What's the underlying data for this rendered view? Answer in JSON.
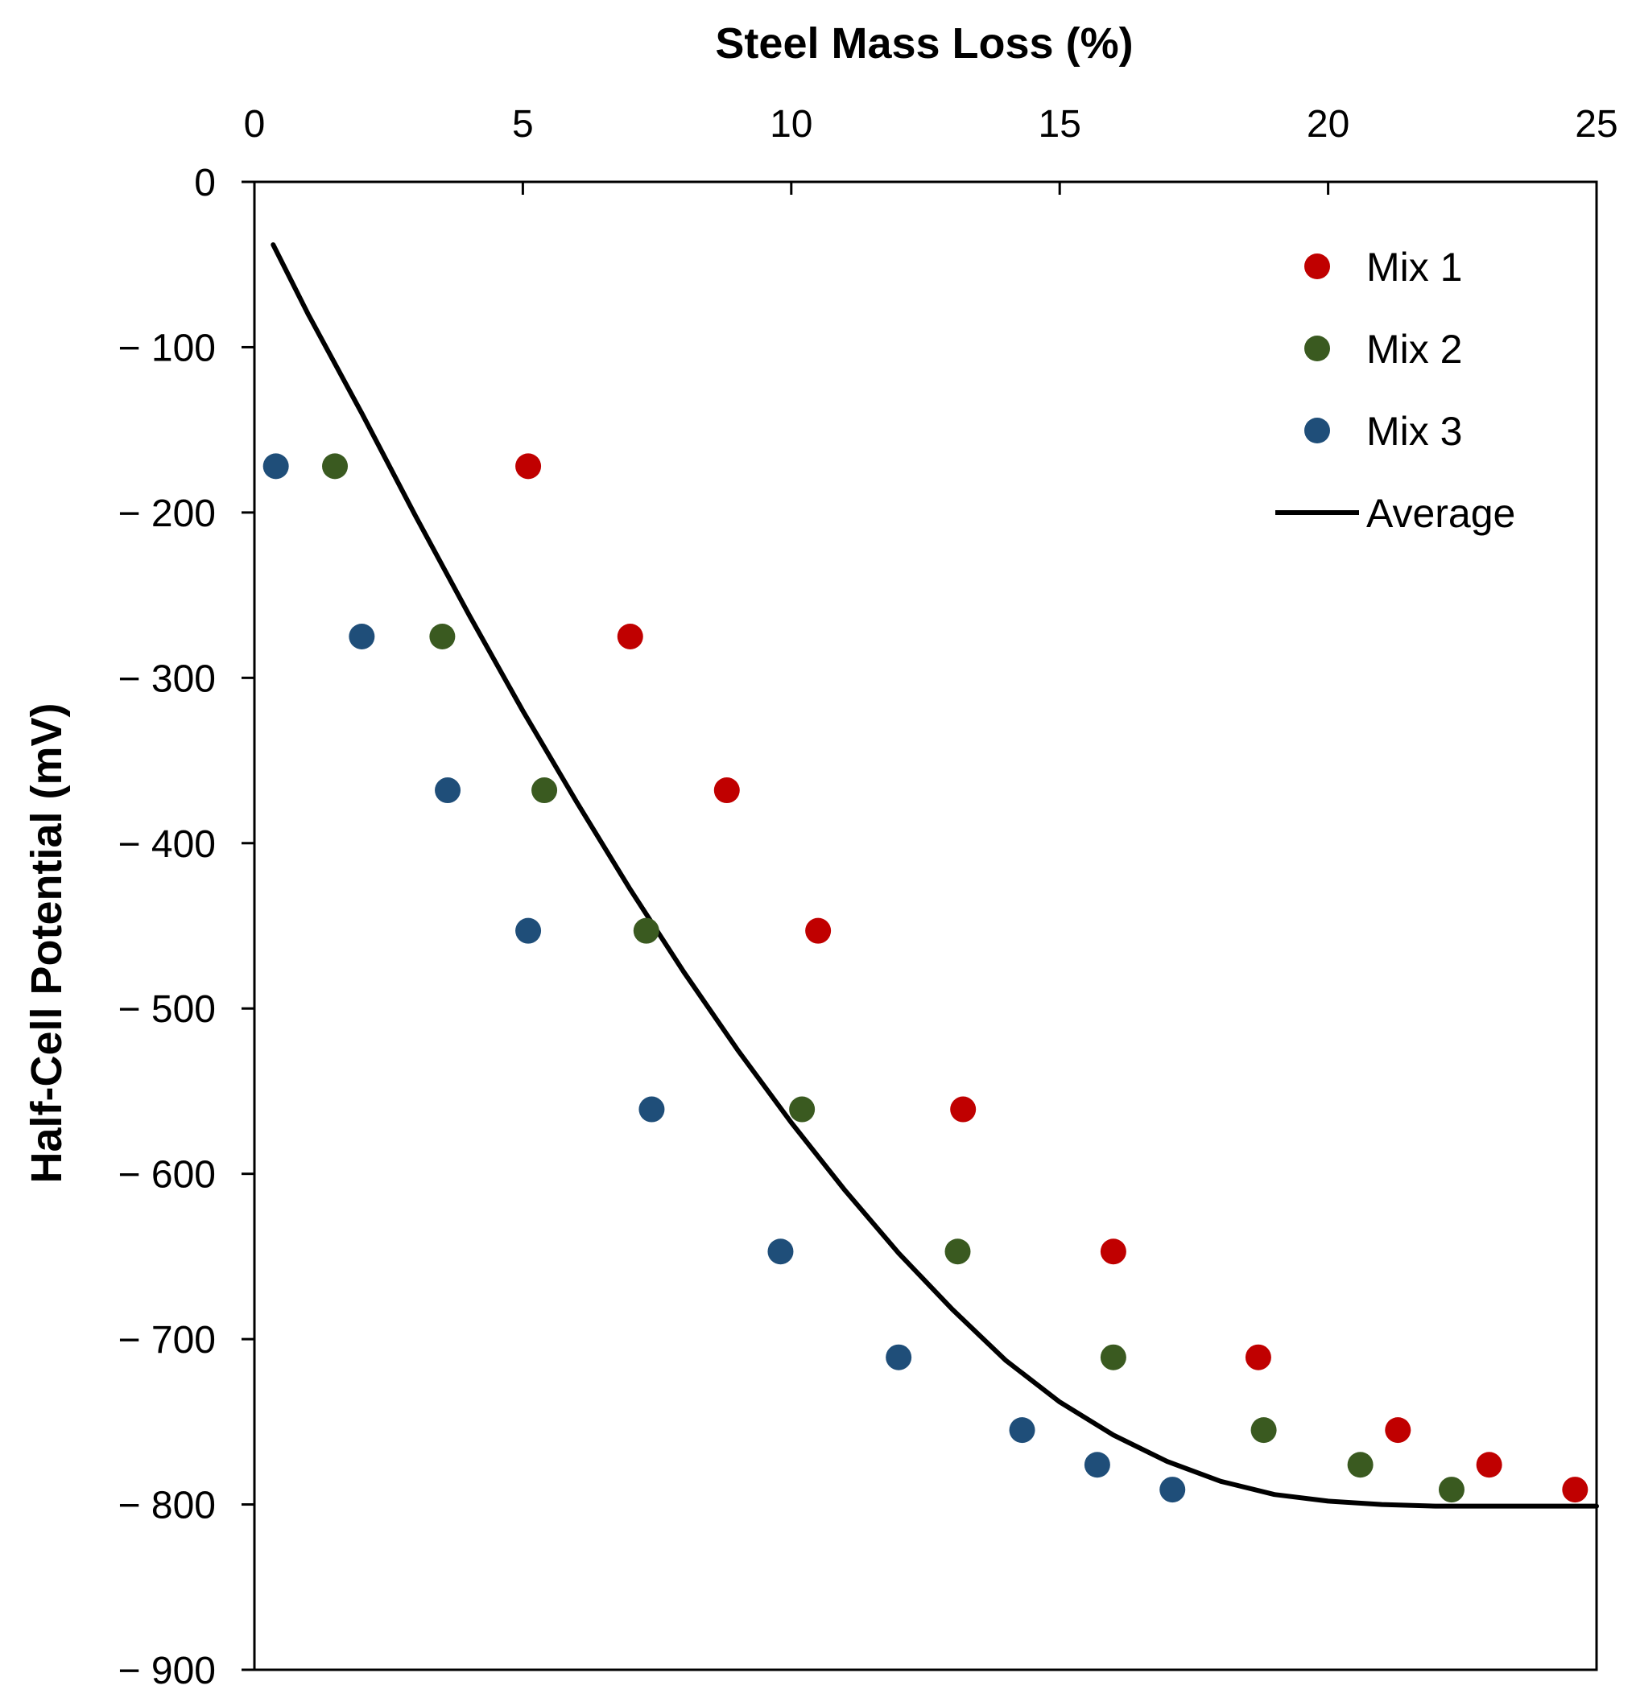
{
  "chart_data": {
    "type": "scatter",
    "title": "",
    "xlabel": "Steel Mass Loss (%)",
    "ylabel": "Half-Cell Potential (mV)",
    "xlim": [
      0,
      25
    ],
    "ylim": [
      -900,
      0
    ],
    "x_axis_position": "top",
    "x_ticks": [
      0,
      5,
      10,
      15,
      20,
      25
    ],
    "x_tick_labels": [
      "0",
      "5",
      "10",
      "15",
      "20",
      "25"
    ],
    "y_ticks": [
      0,
      -100,
      -200,
      -300,
      -400,
      -500,
      -600,
      -700,
      -800,
      -900
    ],
    "y_tick_labels": [
      "0",
      "− 100",
      "− 200",
      "− 300",
      "− 400",
      "− 500",
      "− 600",
      "− 700",
      "− 800",
      "− 900"
    ],
    "grid": false,
    "legend_position": "top-right",
    "series": [
      {
        "name": "Mix 1",
        "marker": "circle",
        "color": "#c00000",
        "points": [
          {
            "x": 5.1,
            "y": -172
          },
          {
            "x": 7.0,
            "y": -275
          },
          {
            "x": 8.8,
            "y": -368
          },
          {
            "x": 10.5,
            "y": -453
          },
          {
            "x": 13.2,
            "y": -561
          },
          {
            "x": 16.0,
            "y": -647
          },
          {
            "x": 18.7,
            "y": -711
          },
          {
            "x": 21.3,
            "y": -755
          },
          {
            "x": 23.0,
            "y": -776
          },
          {
            "x": 24.6,
            "y": -791
          }
        ]
      },
      {
        "name": "Mix 2",
        "marker": "circle",
        "color": "#3a5a20",
        "points": [
          {
            "x": 1.5,
            "y": -172
          },
          {
            "x": 3.5,
            "y": -275
          },
          {
            "x": 5.4,
            "y": -368
          },
          {
            "x": 7.3,
            "y": -453
          },
          {
            "x": 10.2,
            "y": -561
          },
          {
            "x": 13.1,
            "y": -647
          },
          {
            "x": 16.0,
            "y": -711
          },
          {
            "x": 18.8,
            "y": -755
          },
          {
            "x": 20.6,
            "y": -776
          },
          {
            "x": 22.3,
            "y": -791
          }
        ]
      },
      {
        "name": "Mix 3",
        "marker": "circle",
        "color": "#1f4e79",
        "points": [
          {
            "x": 0.4,
            "y": -172
          },
          {
            "x": 2.0,
            "y": -275
          },
          {
            "x": 3.6,
            "y": -368
          },
          {
            "x": 5.1,
            "y": -453
          },
          {
            "x": 7.4,
            "y": -561
          },
          {
            "x": 9.8,
            "y": -647
          },
          {
            "x": 12.0,
            "y": -711
          },
          {
            "x": 14.3,
            "y": -755
          },
          {
            "x": 15.7,
            "y": -776
          },
          {
            "x": 17.1,
            "y": -791
          }
        ]
      },
      {
        "name": "Average",
        "marker": "line",
        "color": "#000000",
        "points": [
          {
            "x": 0.35,
            "y": -38
          },
          {
            "x": 1,
            "y": -80
          },
          {
            "x": 2,
            "y": -140
          },
          {
            "x": 3,
            "y": -202
          },
          {
            "x": 4,
            "y": -262
          },
          {
            "x": 5,
            "y": -320
          },
          {
            "x": 6,
            "y": -375
          },
          {
            "x": 7,
            "y": -428
          },
          {
            "x": 8,
            "y": -478
          },
          {
            "x": 9,
            "y": -525
          },
          {
            "x": 10,
            "y": -569
          },
          {
            "x": 11,
            "y": -610
          },
          {
            "x": 12,
            "y": -648
          },
          {
            "x": 13,
            "y": -682
          },
          {
            "x": 14,
            "y": -713
          },
          {
            "x": 15,
            "y": -738
          },
          {
            "x": 16,
            "y": -758
          },
          {
            "x": 17,
            "y": -774
          },
          {
            "x": 18,
            "y": -786
          },
          {
            "x": 19,
            "y": -794
          },
          {
            "x": 20,
            "y": -798
          },
          {
            "x": 21,
            "y": -800
          },
          {
            "x": 22,
            "y": -801
          },
          {
            "x": 23,
            "y": -801
          },
          {
            "x": 24,
            "y": -801
          },
          {
            "x": 25,
            "y": -801
          }
        ]
      }
    ]
  }
}
